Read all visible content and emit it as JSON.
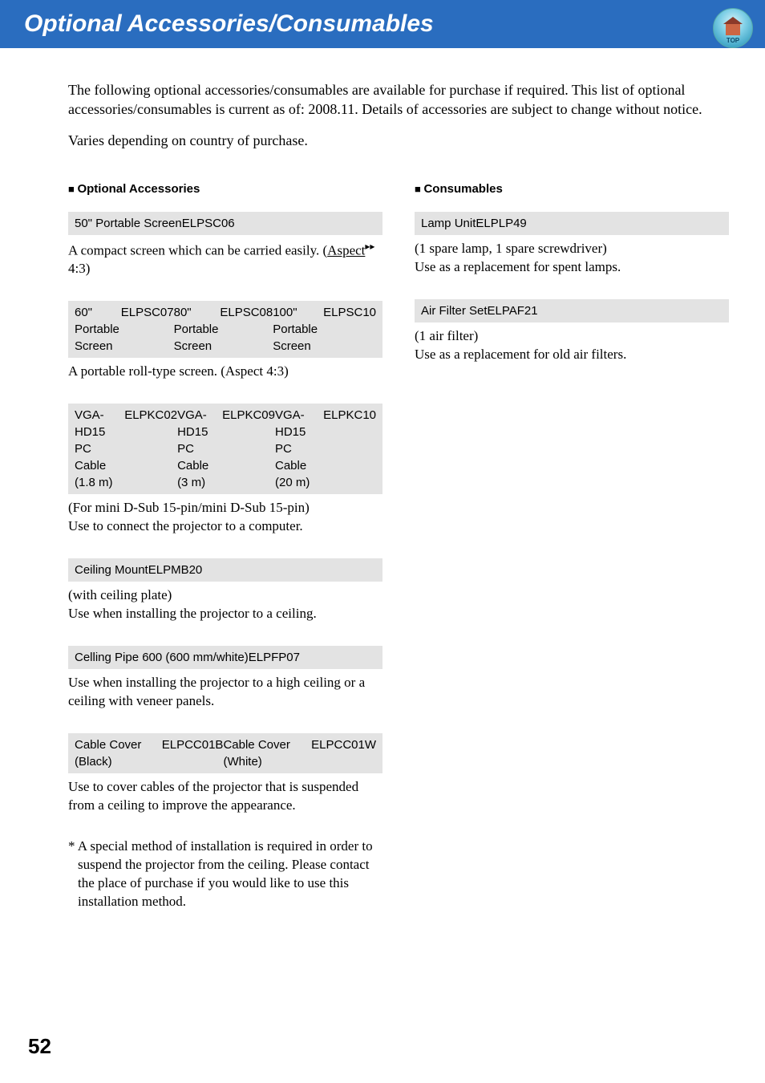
{
  "header": {
    "title": "Optional Accessories/Consumables",
    "badge_label": "TOP"
  },
  "intro": [
    "The following optional accessories/consumables are available for purchase if required. This list of optional accessories/consumables is current as of: 2008.11. Details of accessories are subject to change without notice.",
    "Varies depending on country of purchase."
  ],
  "left": {
    "heading": "Optional Accessories",
    "blocks": [
      {
        "rows": [
          {
            "name": "50\" Portable Screen",
            "code": "ELPSC06"
          }
        ],
        "desc_html": "A compact screen which can be carried easily. (<span class=\"aspect-link\">Aspect</span><span class=\"glossary-arrow\">▸▸</span> 4:3)"
      },
      {
        "rows": [
          {
            "name": "60\" Portable Screen",
            "code": "ELPSC07"
          },
          {
            "name": "80\" Portable Screen",
            "code": "ELPSC08"
          },
          {
            "name": "100\" Portable Screen",
            "code": "ELPSC10"
          }
        ],
        "desc_html": "A portable roll-type screen. (Aspect 4:3)"
      },
      {
        "rows": [
          {
            "name": "VGA-HD15 PC Cable (1.8 m)",
            "code": "ELPKC02"
          },
          {
            "name": "VGA-HD15 PC Cable (3 m)",
            "code": "ELPKC09"
          },
          {
            "name": "VGA-HD15 PC Cable (20 m)",
            "code": "ELPKC10"
          }
        ],
        "desc_html": "(For mini D-Sub 15-pin/mini D-Sub 15-pin)<br>Use to connect the projector to a computer."
      },
      {
        "rows": [
          {
            "name": "Ceiling Mount",
            "code": "ELPMB20"
          }
        ],
        "desc_html": "(with ceiling plate)<br>Use when installing the projector to a ceiling."
      },
      {
        "rows": [
          {
            "name": "Celling Pipe 600 (600 mm/white)",
            "code": "ELPFP07"
          }
        ],
        "desc_html": "Use when installing the projector to a high ceiling or a ceiling with veneer panels."
      },
      {
        "rows": [
          {
            "name": "Cable Cover (Black)",
            "code": "ELPCC01B"
          },
          {
            "name": "Cable Cover (White)",
            "code": "ELPCC01W"
          }
        ],
        "desc_html": "Use to cover cables of the projector that is suspended from a ceiling to improve the appearance."
      }
    ],
    "footnote": "* A special method of installation is required in order to suspend the projector from the ceiling. Please contact the place of purchase if you would like to use this installation method."
  },
  "right": {
    "heading": "Consumables",
    "blocks": [
      {
        "rows": [
          {
            "name": "Lamp Unit",
            "code": "ELPLP49"
          }
        ],
        "desc_html": "(1 spare lamp, 1 spare screwdriver)<br>Use as a replacement for spent lamps."
      },
      {
        "rows": [
          {
            "name": "Air Filter Set",
            "code": "ELPAF21"
          }
        ],
        "desc_html": "(1 air filter)<br>Use as a replacement for old air filters."
      }
    ]
  },
  "page_number": "52"
}
